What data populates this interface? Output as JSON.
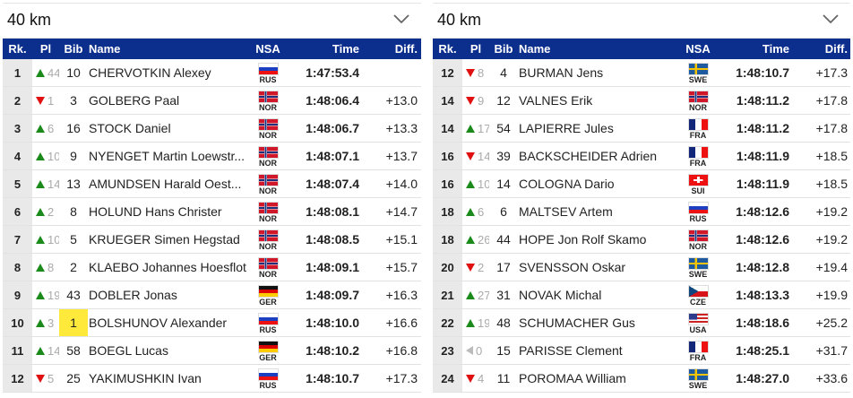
{
  "colors": {
    "header": "#0c2f8e",
    "up": "#1a8a1a",
    "down": "#e01010",
    "highlight": "#ffe93a"
  },
  "columns": {
    "rk": "Rk.",
    "pl": "Pl",
    "bib": "Bib",
    "name": "Name",
    "nsa": "NSA",
    "time": "Time",
    "diff": "Diff."
  },
  "panels": [
    {
      "selector": "40 km",
      "rows": [
        {
          "rk": "1",
          "dir": "up",
          "pl": "44",
          "bib": "10",
          "name": "CHERVOTKIN Alexey",
          "nsa": "RUS",
          "time": "1:47:53.4",
          "diff": ""
        },
        {
          "rk": "2",
          "dir": "down",
          "pl": "1",
          "bib": "3",
          "name": "GOLBERG Paal",
          "nsa": "NOR",
          "time": "1:48:06.4",
          "diff": "+13.0"
        },
        {
          "rk": "3",
          "dir": "up",
          "pl": "6",
          "bib": "16",
          "name": "STOCK Daniel",
          "nsa": "NOR",
          "time": "1:48:06.7",
          "diff": "+13.3"
        },
        {
          "rk": "4",
          "dir": "up",
          "pl": "10",
          "bib": "9",
          "name": "NYENGET Martin Loewstr...",
          "nsa": "NOR",
          "time": "1:48:07.1",
          "diff": "+13.7"
        },
        {
          "rk": "5",
          "dir": "up",
          "pl": "14",
          "bib": "13",
          "name": "AMUNDSEN Harald Oest...",
          "nsa": "NOR",
          "time": "1:48:07.4",
          "diff": "+14.0"
        },
        {
          "rk": "6",
          "dir": "up",
          "pl": "2",
          "bib": "8",
          "name": "HOLUND Hans Christer",
          "nsa": "NOR",
          "time": "1:48:08.1",
          "diff": "+14.7"
        },
        {
          "rk": "7",
          "dir": "up",
          "pl": "10",
          "bib": "5",
          "name": "KRUEGER Simen Hegstad",
          "nsa": "NOR",
          "time": "1:48:08.5",
          "diff": "+15.1"
        },
        {
          "rk": "8",
          "dir": "up",
          "pl": "8",
          "bib": "2",
          "name": "KLAEBO Johannes Hoesflot",
          "nsa": "NOR",
          "time": "1:48:09.1",
          "diff": "+15.7"
        },
        {
          "rk": "9",
          "dir": "up",
          "pl": "19",
          "bib": "43",
          "name": "DOBLER Jonas",
          "nsa": "GER",
          "time": "1:48:09.7",
          "diff": "+16.3"
        },
        {
          "rk": "10",
          "dir": "up",
          "pl": "3",
          "bib": "1",
          "name": "BOLSHUNOV Alexander",
          "nsa": "RUS",
          "time": "1:48:10.0",
          "diff": "+16.6",
          "highlight": true
        },
        {
          "rk": "11",
          "dir": "up",
          "pl": "14",
          "bib": "58",
          "name": "BOEGL Lucas",
          "nsa": "GER",
          "time": "1:48:10.2",
          "diff": "+16.8"
        },
        {
          "rk": "12",
          "dir": "down",
          "pl": "5",
          "bib": "25",
          "name": "YAKIMUSHKIN Ivan",
          "nsa": "RUS",
          "time": "1:48:10.7",
          "diff": "+17.3"
        }
      ]
    },
    {
      "selector": "40 km",
      "rows": [
        {
          "rk": "12",
          "dir": "down",
          "pl": "8",
          "bib": "4",
          "name": "BURMAN Jens",
          "nsa": "SWE",
          "time": "1:48:10.7",
          "diff": "+17.3"
        },
        {
          "rk": "14",
          "dir": "down",
          "pl": "9",
          "bib": "12",
          "name": "VALNES Erik",
          "nsa": "NOR",
          "time": "1:48:11.2",
          "diff": "+17.8"
        },
        {
          "rk": "14",
          "dir": "up",
          "pl": "17",
          "bib": "54",
          "name": "LAPIERRE Jules",
          "nsa": "FRA",
          "time": "1:48:11.2",
          "diff": "+17.8"
        },
        {
          "rk": "16",
          "dir": "down",
          "pl": "14",
          "bib": "39",
          "name": "BACKSCHEIDER Adrien",
          "nsa": "FRA",
          "time": "1:48:11.9",
          "diff": "+18.5"
        },
        {
          "rk": "16",
          "dir": "up",
          "pl": "10",
          "bib": "14",
          "name": "COLOGNA Dario",
          "nsa": "SUI",
          "time": "1:48:11.9",
          "diff": "+18.5"
        },
        {
          "rk": "18",
          "dir": "up",
          "pl": "6",
          "bib": "6",
          "name": "MALTSEV Artem",
          "nsa": "RUS",
          "time": "1:48:12.6",
          "diff": "+19.2"
        },
        {
          "rk": "18",
          "dir": "up",
          "pl": "26",
          "bib": "44",
          "name": "HOPE Jon Rolf Skamo",
          "nsa": "NOR",
          "time": "1:48:12.6",
          "diff": "+19.2"
        },
        {
          "rk": "20",
          "dir": "down",
          "pl": "2",
          "bib": "17",
          "name": "SVENSSON Oskar",
          "nsa": "SWE",
          "time": "1:48:12.8",
          "diff": "+19.4"
        },
        {
          "rk": "21",
          "dir": "up",
          "pl": "27",
          "bib": "31",
          "name": "NOVAK Michal",
          "nsa": "CZE",
          "time": "1:48:13.3",
          "diff": "+19.9"
        },
        {
          "rk": "22",
          "dir": "up",
          "pl": "19",
          "bib": "48",
          "name": "SCHUMACHER Gus",
          "nsa": "USA",
          "time": "1:48:18.6",
          "diff": "+25.2"
        },
        {
          "rk": "23",
          "dir": "same",
          "pl": "0",
          "bib": "15",
          "name": "PARISSE Clement",
          "nsa": "FRA",
          "time": "1:48:25.1",
          "diff": "+31.7"
        },
        {
          "rk": "24",
          "dir": "down",
          "pl": "4",
          "bib": "11",
          "name": "POROMAA William",
          "nsa": "SWE",
          "time": "1:48:27.0",
          "diff": "+33.6"
        }
      ]
    }
  ]
}
